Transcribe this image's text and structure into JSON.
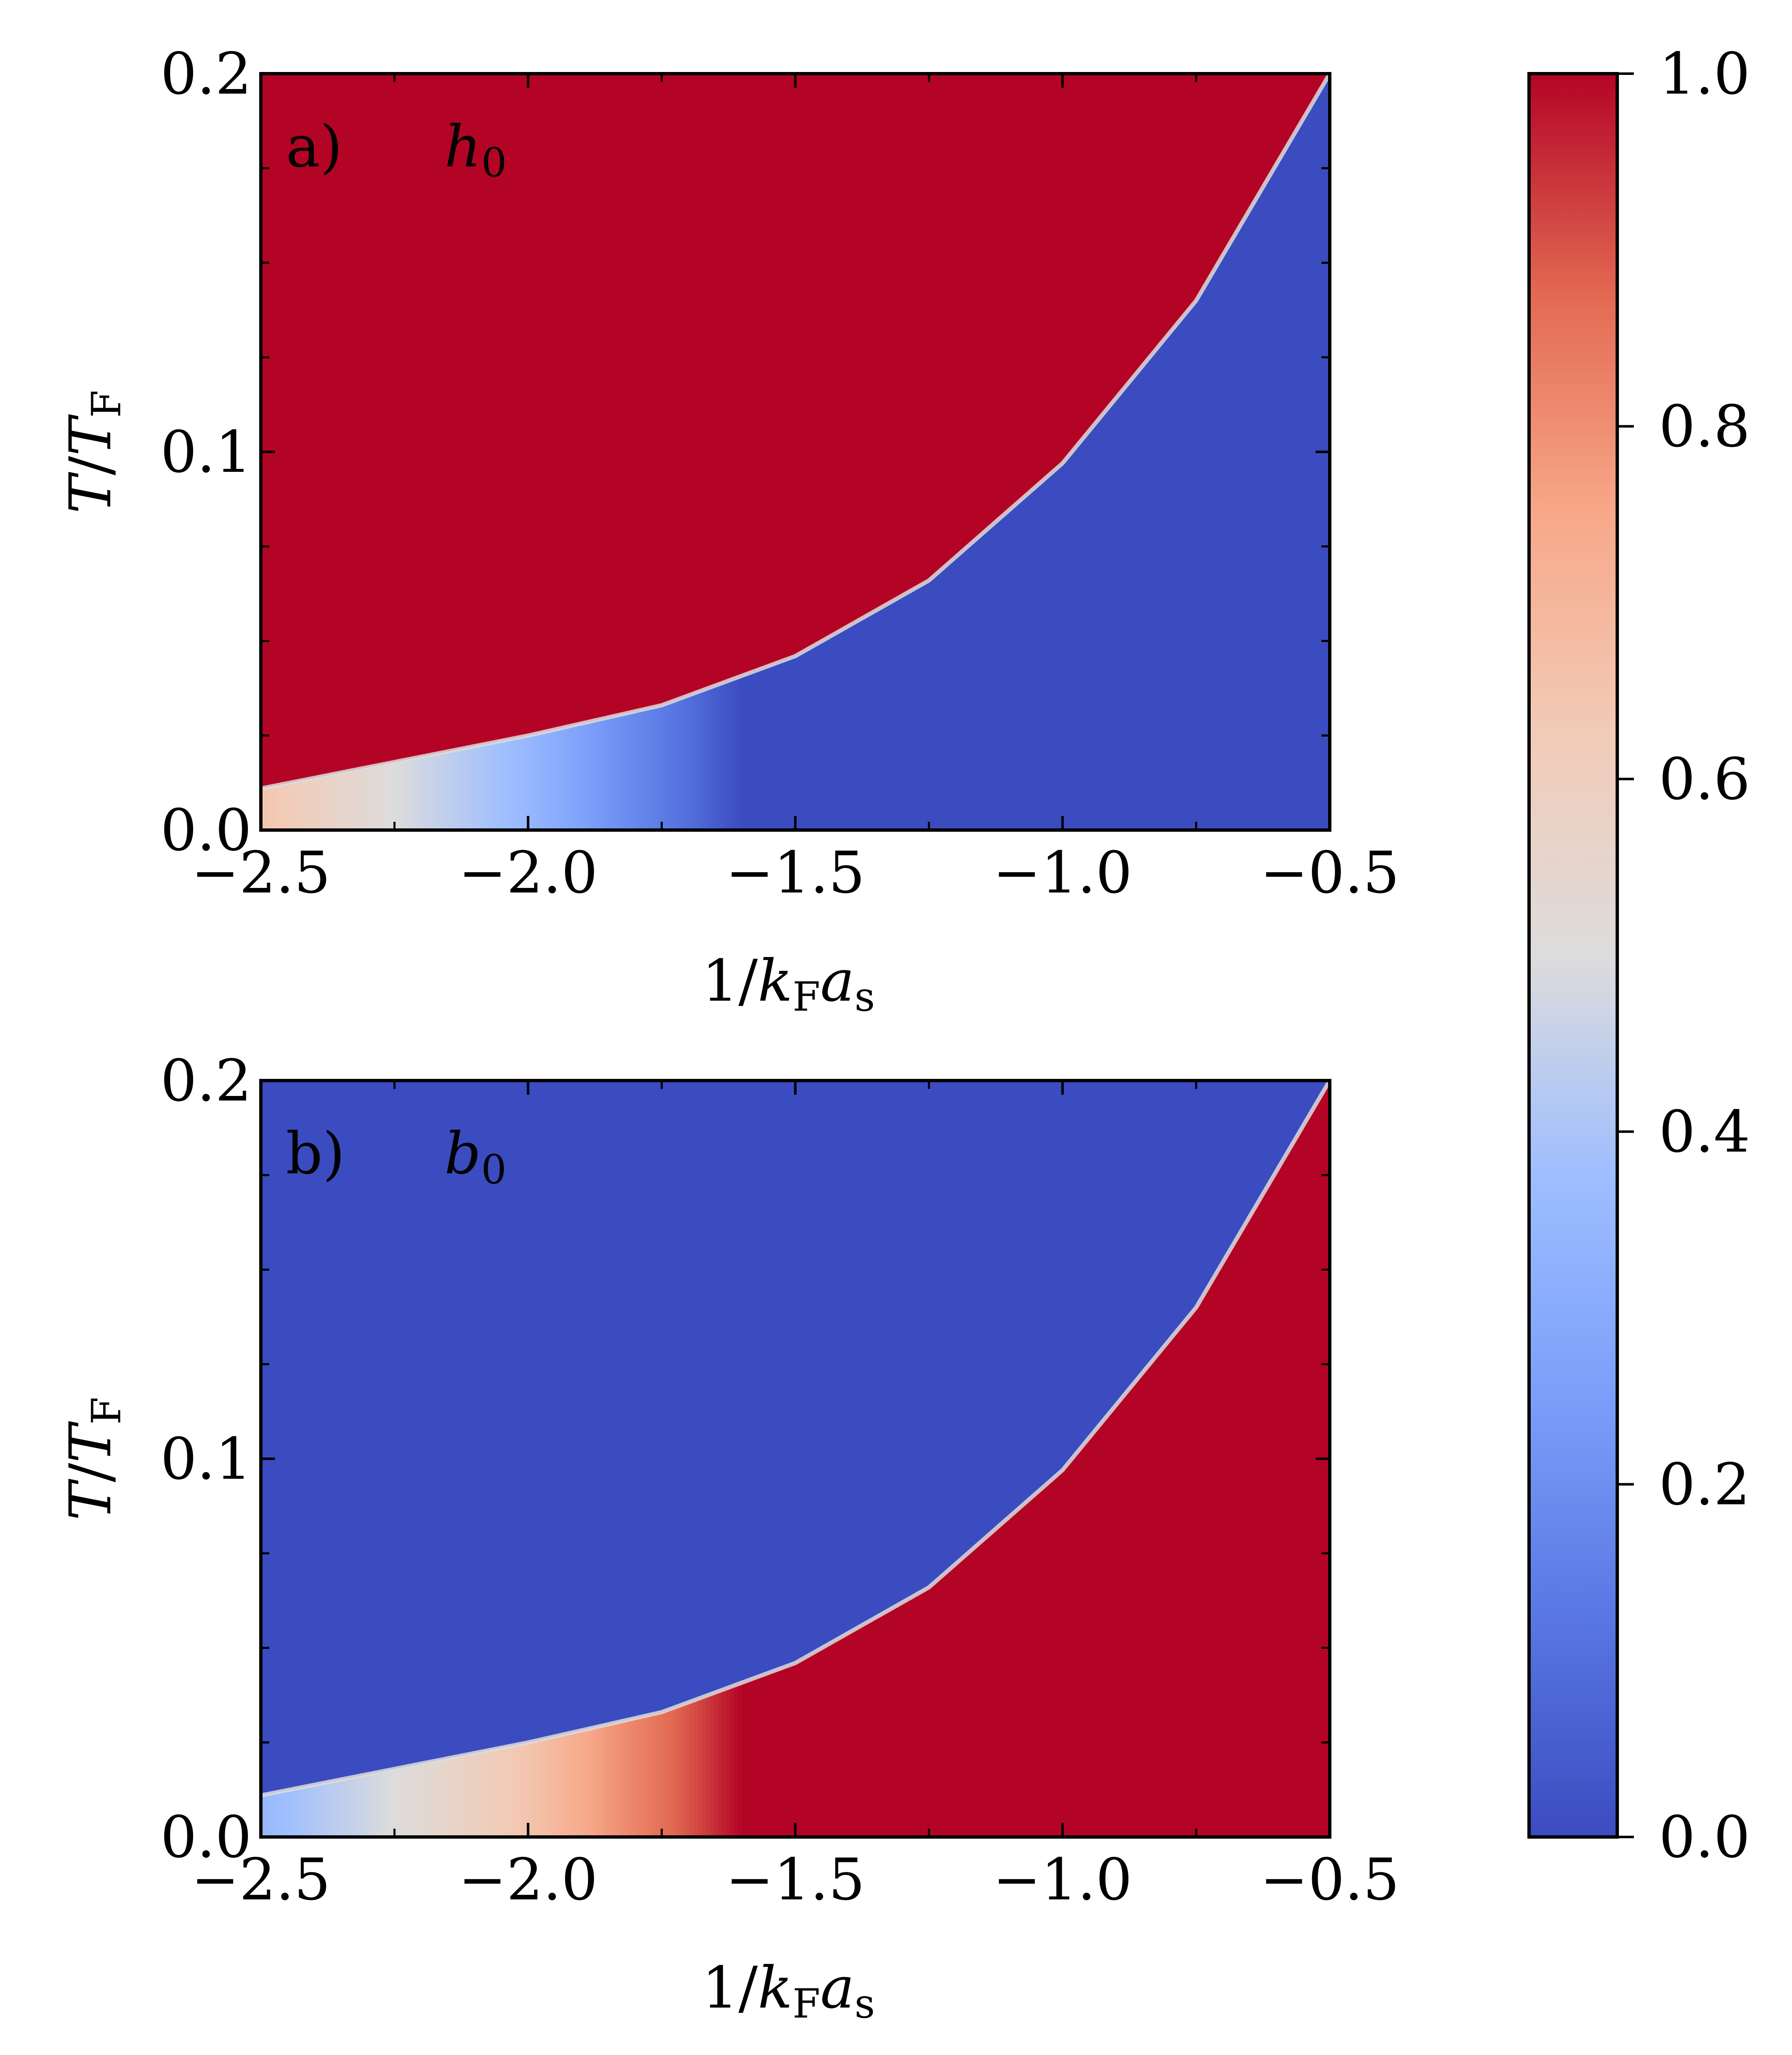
{
  "chart_data": [
    {
      "type": "heatmap",
      "panel_label": "a)",
      "quantity": "h",
      "quantity_sub": "0",
      "xlabel": "1/k_F a_s",
      "ylabel": "T/T_F",
      "xlim": [
        -2.5,
        -0.5
      ],
      "ylim": [
        0.0,
        0.2
      ],
      "xticks": [
        -2.5,
        -2.0,
        -1.5,
        -1.0,
        -0.5
      ],
      "xtick_labels": [
        "−2.5",
        "−2.0",
        "−1.5",
        "−1.0",
        "−0.5"
      ],
      "yticks": [
        0.0,
        0.1,
        0.2
      ],
      "ytick_labels": [
        "0.0",
        "0.1",
        "0.2"
      ],
      "colormap": "coolwarm",
      "clim": [
        0,
        1
      ],
      "boundary_curve": {
        "x": [
          -2.5,
          -2.25,
          -2.0,
          -1.75,
          -1.5,
          -1.25,
          -1.0,
          -0.75,
          -0.5
        ],
        "y": [
          0.011,
          0.018,
          0.025,
          0.033,
          0.046,
          0.066,
          0.097,
          0.14,
          0.2
        ]
      },
      "region_above_curve": 1.0,
      "region_below_curve_far": 0.0,
      "low_T_strip": {
        "x": [
          -2.5,
          -2.25,
          -2.0,
          -1.85,
          -1.7,
          -1.6
        ],
        "value": [
          0.65,
          0.5,
          0.35,
          0.22,
          0.1,
          0.0
        ]
      }
    },
    {
      "type": "heatmap",
      "panel_label": "b)",
      "quantity": "b",
      "quantity_sub": "0",
      "xlabel": "1/k_F a_s",
      "ylabel": "T/T_F",
      "xlim": [
        -2.5,
        -0.5
      ],
      "ylim": [
        0.0,
        0.2
      ],
      "xticks": [
        -2.5,
        -2.0,
        -1.5,
        -1.0,
        -0.5
      ],
      "xtick_labels": [
        "−2.5",
        "−2.0",
        "−1.5",
        "−1.0",
        "−0.5"
      ],
      "yticks": [
        0.0,
        0.1,
        0.2
      ],
      "ytick_labels": [
        "0.0",
        "0.1",
        "0.2"
      ],
      "colormap": "coolwarm",
      "clim": [
        0,
        1
      ],
      "boundary_curve": {
        "x": [
          -2.5,
          -2.25,
          -2.0,
          -1.75,
          -1.5,
          -1.25,
          -1.0,
          -0.75,
          -0.5
        ],
        "y": [
          0.011,
          0.018,
          0.025,
          0.033,
          0.046,
          0.066,
          0.097,
          0.14,
          0.2
        ]
      },
      "region_above_curve": 0.0,
      "region_below_curve_far": 1.0,
      "low_T_strip": {
        "x": [
          -2.5,
          -2.25,
          -2.0,
          -1.85,
          -1.7,
          -1.6
        ],
        "value": [
          0.35,
          0.5,
          0.65,
          0.78,
          0.9,
          1.0
        ]
      }
    }
  ],
  "colorbar": {
    "range": [
      0.0,
      1.0
    ],
    "ticks": [
      0.0,
      0.2,
      0.4,
      0.6,
      0.8,
      1.0
    ],
    "tick_labels": [
      "0.0",
      "0.2",
      "0.4",
      "0.6",
      "0.8",
      "1.0"
    ],
    "colors": {
      "low": "#3b4cc0",
      "mid": "#dddddd",
      "high": "#b40426"
    }
  },
  "axis_text": {
    "xlabel_parts": {
      "pre": "1/",
      "k": "k",
      "F": "F",
      "a": "a",
      "s": "s"
    },
    "ylabel_parts": {
      "T": "T",
      "slash": "/",
      "T2": "T",
      "F": "F"
    }
  }
}
